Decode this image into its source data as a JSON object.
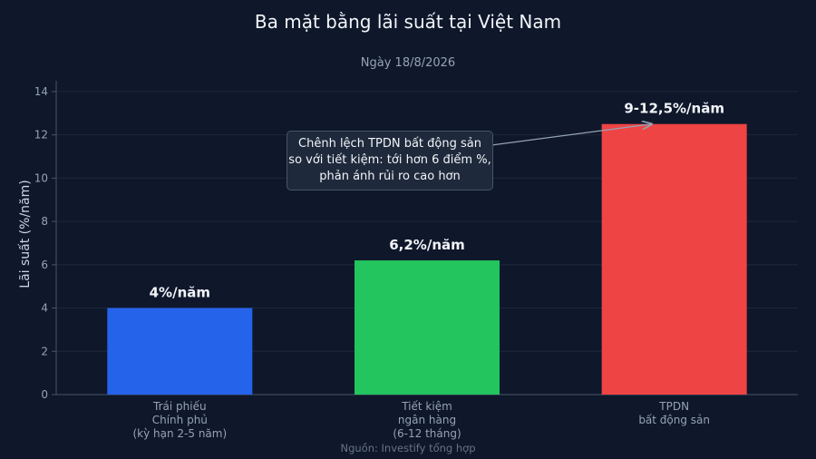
{
  "chart_data": {
    "type": "bar",
    "title": "Ba mặt bằng lãi suất tại Việt Nam",
    "subtitle": "Ngày 18/8/2026",
    "ylabel": "Lãi suất (%/năm)",
    "xlabel": "",
    "ylim": [
      0,
      14.5
    ],
    "yticks": [
      0,
      2,
      4,
      6,
      8,
      10,
      12,
      14
    ],
    "grid": true,
    "categories": [
      [
        "Trái phiếu",
        "Chính phủ",
        "(kỳ hạn 2-5 năm)"
      ],
      [
        "Tiết kiệm",
        "ngân hàng",
        "(6-12 tháng)"
      ],
      [
        "TPDN",
        "bất động sản"
      ]
    ],
    "values": [
      4,
      6.2,
      12.5
    ],
    "data_labels": [
      "4%/năm",
      "6,2%/năm",
      "9-12,5%/năm"
    ],
    "bar_colors": [
      "#2563eb",
      "#22c55e",
      "#ef4444"
    ],
    "annotation": {
      "lines": [
        "Chênh lệch TPDN bất động sản",
        "so với tiết kiệm: tới hơn 6 điểm %,",
        "phản ánh rủi ro cao hơn"
      ],
      "points_to_category": 2
    },
    "source": "Nguồn: Investify tổng hợp"
  },
  "colors": {
    "background": "#0f172a",
    "grid": "#1e293b",
    "axis": "#475569",
    "text": "#f1f5f9",
    "muted": "#94a3b8"
  }
}
